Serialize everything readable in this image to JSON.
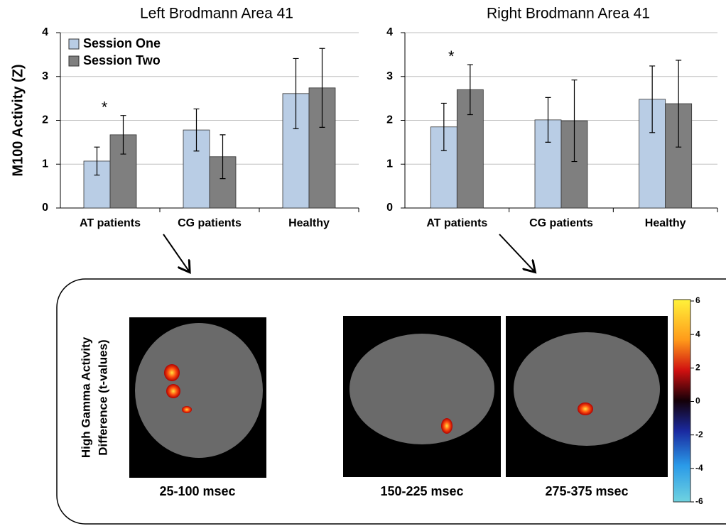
{
  "chart_data": [
    {
      "type": "bar",
      "title": "Left Brodmann Area 41",
      "ylabel": "M100  Activity (Z)",
      "categories": [
        "AT patients",
        "CG patients",
        "Healthy"
      ],
      "series": [
        {
          "name": "Session One",
          "color": "#b9cde5",
          "values": [
            1.07,
            1.78,
            2.61
          ],
          "errors": [
            0.32,
            0.48,
            0.8
          ]
        },
        {
          "name": "Session Two",
          "color": "#7f7f7f",
          "values": [
            1.67,
            1.17,
            2.74
          ],
          "errors": [
            0.44,
            0.5,
            0.9
          ]
        }
      ],
      "annotations": [
        {
          "text": "*",
          "category": "AT patients"
        }
      ],
      "ylim": [
        0,
        4
      ],
      "yticks": [
        0,
        1,
        2,
        3,
        4
      ],
      "grid": true,
      "legend": "upper left"
    },
    {
      "type": "bar",
      "title": "Right Brodmann Area 41",
      "categories": [
        "AT patients",
        "CG patients",
        "Healthy"
      ],
      "series": [
        {
          "color": "#b9cde5",
          "values": [
            1.85,
            2.01,
            2.48
          ],
          "errors": [
            0.54,
            0.51,
            0.76
          ]
        },
        {
          "color": "#7f7f7f",
          "values": [
            2.7,
            1.99,
            2.38
          ],
          "errors": [
            0.57,
            0.93,
            0.99
          ]
        }
      ],
      "annotations": [
        {
          "text": "*",
          "category": "AT patients"
        }
      ],
      "ylim": [
        0,
        4
      ],
      "yticks": [
        0,
        1,
        2,
        3,
        4
      ],
      "grid": true
    }
  ],
  "brain_panel": {
    "ylabel": [
      "High Gamma Activity",
      "Difference (t-values)"
    ],
    "images": [
      "25-100 msec",
      "150-225 msec",
      "275-375 msec"
    ],
    "colorbar": {
      "lim": [
        -6,
        6
      ],
      "ticks": [
        6,
        4,
        2,
        0,
        -2,
        -4,
        -6
      ]
    }
  }
}
